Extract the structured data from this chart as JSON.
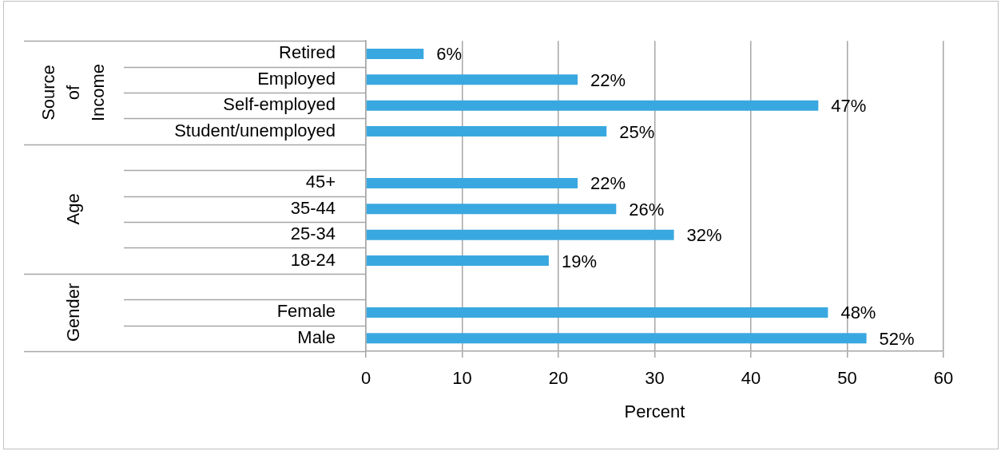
{
  "chart_data": {
    "type": "bar",
    "orientation": "horizontal",
    "categories": [
      "Retired",
      "Employed",
      "Self-employed",
      "Student/unemployed",
      null,
      "45+",
      "35-44",
      "25-34",
      "18-24",
      null,
      "Female",
      "Male"
    ],
    "values": [
      6,
      22,
      47,
      25,
      null,
      22,
      26,
      32,
      19,
      null,
      48,
      52
    ],
    "value_labels": [
      "6%",
      "22%",
      "47%",
      "25%",
      null,
      "22%",
      "26%",
      "32%",
      "19%",
      null,
      "48%",
      "52%"
    ],
    "color": "#3aa8e0",
    "xlabel": "Percent",
    "xlim": [
      0,
      60
    ],
    "xticks": [
      0,
      10,
      20,
      30,
      40,
      50,
      60
    ],
    "grid": "x",
    "annotations": [
      "Source of Income",
      "Age",
      "Gender"
    ]
  }
}
